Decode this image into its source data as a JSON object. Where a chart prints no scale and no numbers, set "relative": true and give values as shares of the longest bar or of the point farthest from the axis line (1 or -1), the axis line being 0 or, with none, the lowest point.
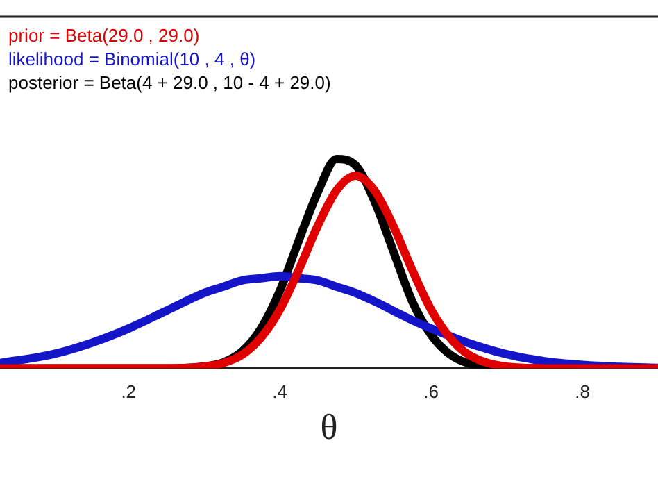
{
  "chart_data": {
    "type": "line",
    "relative": true,
    "xlabel": "θ",
    "legend": "top left",
    "marker": "none",
    "line_style": "solid",
    "xlim": [
      0.03,
      0.9
    ],
    "xticks": [
      {
        "value": 0.2,
        "label": ".2"
      },
      {
        "value": 0.4,
        "label": ".4"
      },
      {
        "value": 0.6,
        "label": ".6"
      },
      {
        "value": 0.8,
        "label": ".8"
      }
    ],
    "x": [
      0.03,
      0.1,
      0.15,
      0.2,
      0.25,
      0.3,
      0.325,
      0.35,
      0.375,
      0.4,
      0.425,
      0.45,
      0.475,
      0.5,
      0.525,
      0.55,
      0.575,
      0.6,
      0.625,
      0.65,
      0.7,
      0.75,
      0.8,
      0.85,
      0.9
    ],
    "series": [
      {
        "name": "prior = Beta(29.0 , 29.0)",
        "color": "#e00000",
        "values": [
          0,
          0,
          0,
          0,
          0,
          0.008,
          0.025,
          0.064,
          0.146,
          0.28,
          0.47,
          0.68,
          0.85,
          0.92,
          0.85,
          0.68,
          0.47,
          0.28,
          0.146,
          0.064,
          0.008,
          0,
          0,
          0,
          0
        ]
      },
      {
        "name": "likelihood = Binomial(10 , 4 , θ)",
        "color": "#1414c8",
        "values": [
          0.025,
          0.067,
          0.12,
          0.19,
          0.275,
          0.36,
          0.39,
          0.42,
          0.43,
          0.44,
          0.43,
          0.42,
          0.39,
          0.36,
          0.32,
          0.275,
          0.23,
          0.19,
          0.154,
          0.12,
          0.067,
          0.034,
          0.016,
          0.007,
          0.002
        ]
      },
      {
        "name": "posterior = Beta(4 + 29.0 , 10 - 4 + 29.0)",
        "color": "#000000",
        "values": [
          0,
          0,
          0,
          0,
          0,
          0.009,
          0.028,
          0.08,
          0.19,
          0.37,
          0.61,
          0.84,
          1,
          0.97,
          0.8,
          0.56,
          0.32,
          0.16,
          0.066,
          0.023,
          0.002,
          0,
          0,
          0,
          0
        ]
      }
    ]
  }
}
